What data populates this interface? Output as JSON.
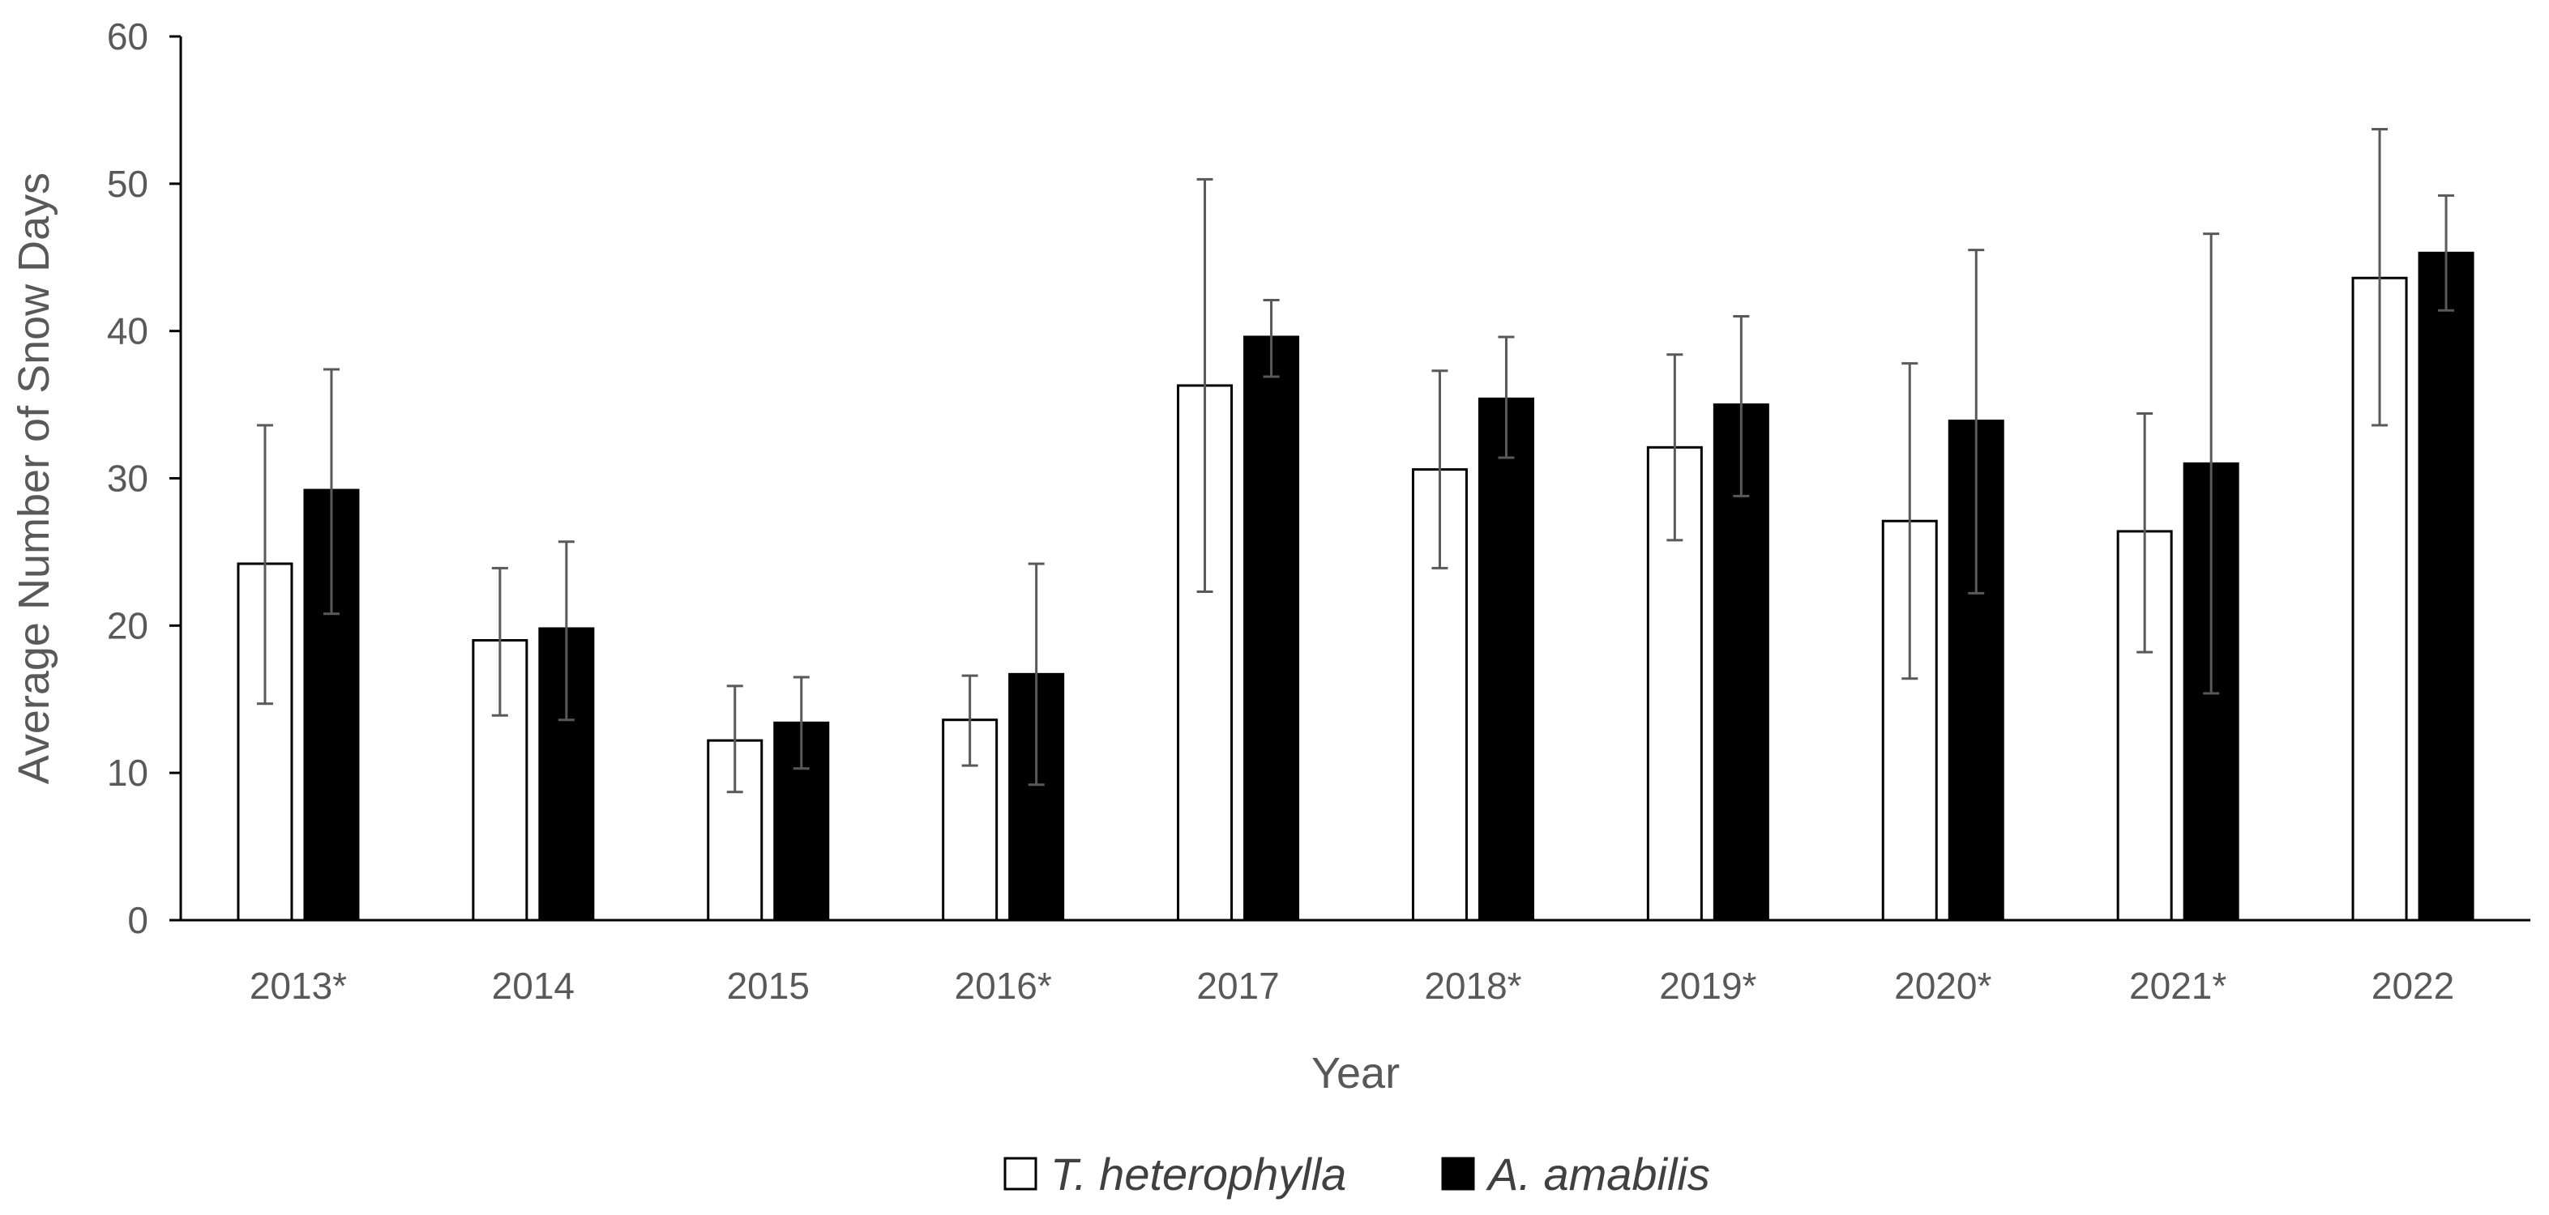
{
  "chart_data": {
    "type": "bar",
    "title": "",
    "xlabel": "Year",
    "ylabel": "Average Number of  Snow Days",
    "ylim": [
      0,
      60
    ],
    "yticks": [
      0,
      10,
      20,
      30,
      40,
      50,
      60
    ],
    "grid": false,
    "legend_position": "bottom-center",
    "categories": [
      "2013*",
      "2014",
      "2015",
      "2016*",
      "2017",
      "2018*",
      "2019*",
      "2020*",
      "2021*",
      "2022"
    ],
    "series": [
      {
        "name": "T. heterophylla",
        "fill": "#ffffff",
        "stroke": "#000000",
        "values": [
          24.2,
          19.0,
          12.2,
          13.6,
          36.3,
          30.6,
          32.1,
          27.1,
          26.4,
          43.6
        ],
        "error_low": [
          14.7,
          13.9,
          8.7,
          10.5,
          22.3,
          23.9,
          25.8,
          16.4,
          18.2,
          33.6
        ],
        "error_high": [
          33.6,
          23.9,
          15.9,
          16.6,
          50.3,
          37.3,
          38.4,
          37.8,
          34.4,
          53.7
        ]
      },
      {
        "name": "A. amabilis",
        "fill": "#000000",
        "stroke": "#000000",
        "values": [
          29.2,
          19.8,
          13.4,
          16.7,
          39.6,
          35.4,
          35.0,
          33.9,
          31.0,
          45.3
        ],
        "error_low": [
          20.8,
          13.6,
          10.3,
          9.2,
          36.9,
          31.4,
          28.8,
          22.2,
          15.4,
          41.4
        ],
        "error_high": [
          37.4,
          25.7,
          16.5,
          24.2,
          42.1,
          39.6,
          41.0,
          45.5,
          46.6,
          49.2
        ]
      }
    ],
    "colors": {
      "axis": "#000000",
      "text": "#595959",
      "error_bar": "#595959"
    }
  }
}
